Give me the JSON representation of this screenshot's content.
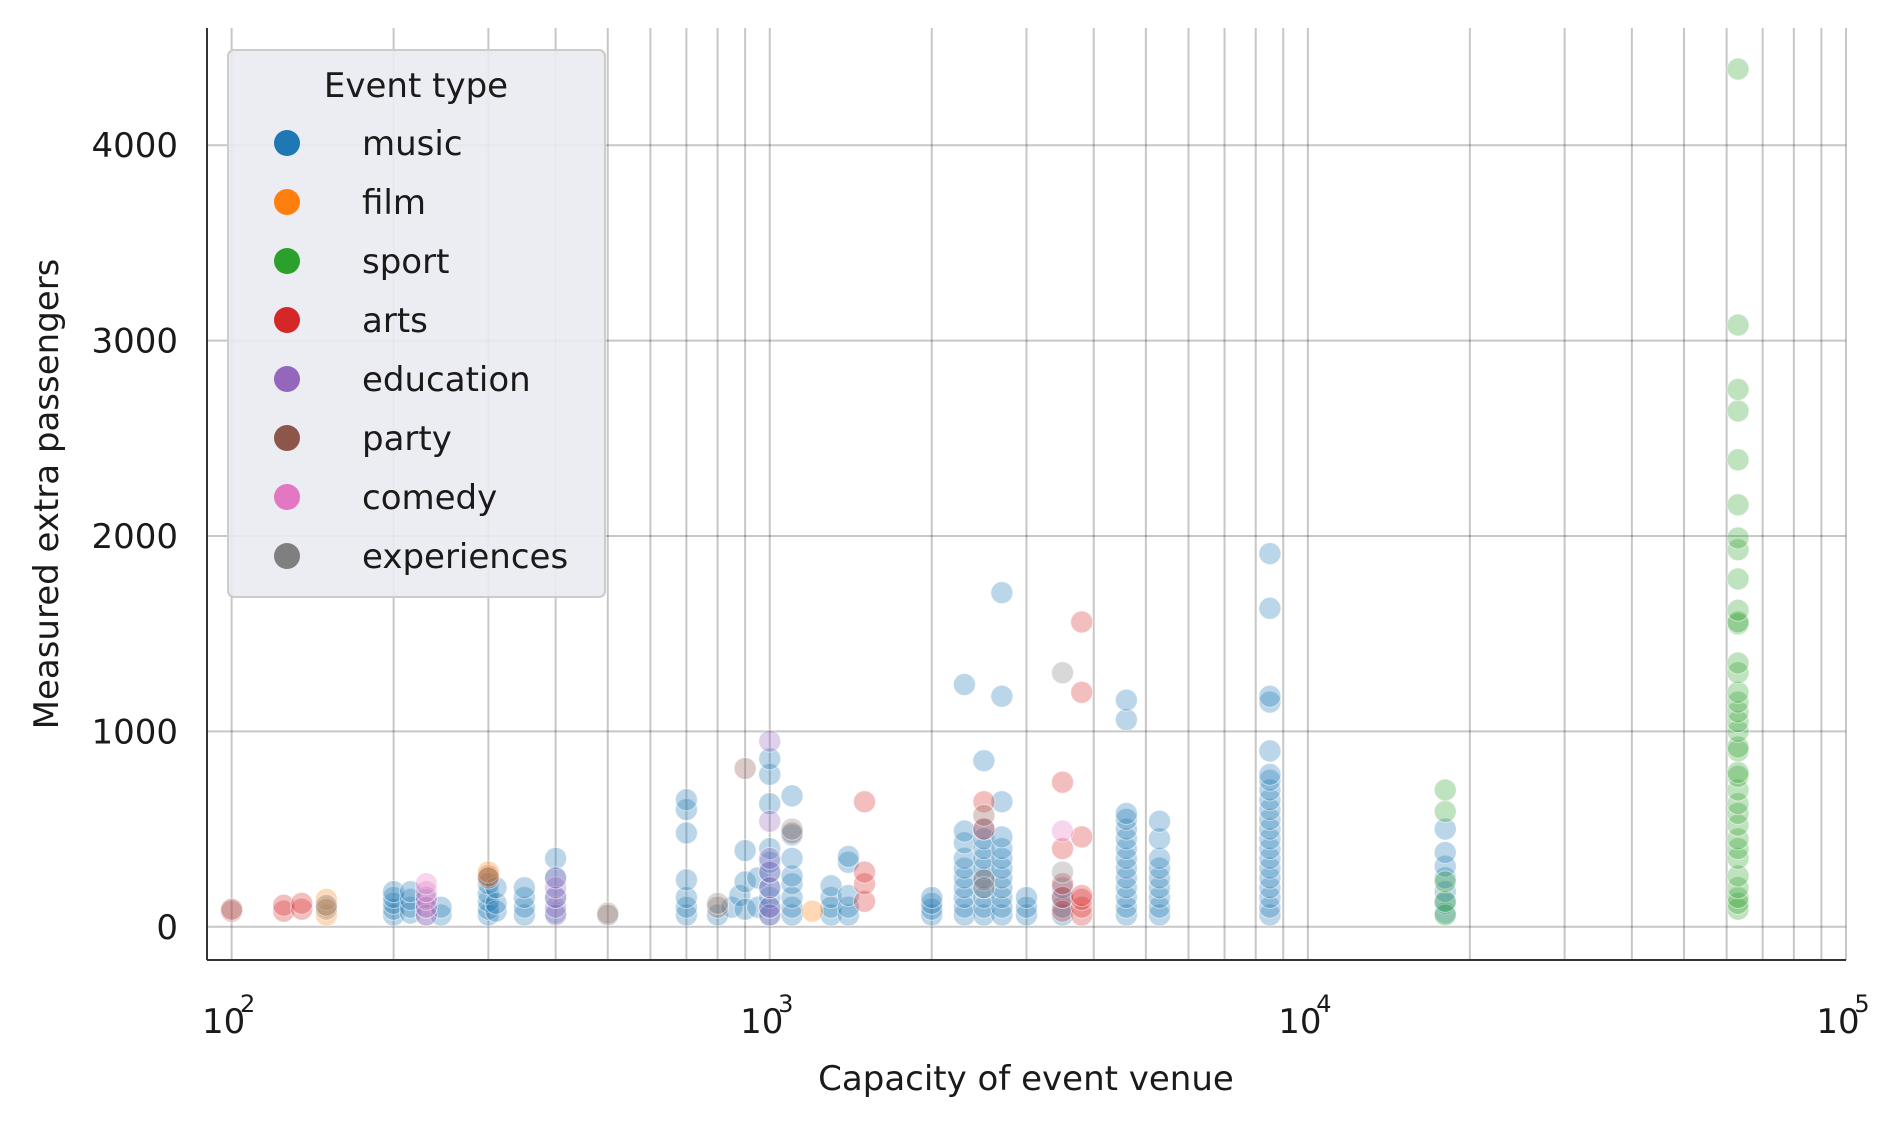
{
  "chart_data": {
    "type": "scatter",
    "xlabel": "Capacity of event venue",
    "ylabel": "Measured extra passengers",
    "xscale": "log",
    "xlim": [
      90,
      100000
    ],
    "ylim": [
      -170,
      4600
    ],
    "xticks": [
      {
        "value": 100,
        "base": "10",
        "exp": "2"
      },
      {
        "value": 1000,
        "base": "10",
        "exp": "3"
      },
      {
        "value": 10000,
        "base": "10",
        "exp": "4"
      },
      {
        "value": 100000,
        "base": "10",
        "exp": "5"
      }
    ],
    "yticks": [
      {
        "value": 0,
        "label": "0"
      },
      {
        "value": 1000,
        "label": "1000"
      },
      {
        "value": 2000,
        "label": "2000"
      },
      {
        "value": 3000,
        "label": "3000"
      },
      {
        "value": 4000,
        "label": "4000"
      }
    ],
    "grid": true,
    "legend": {
      "title": "Event type",
      "position": "top-left"
    },
    "series": [
      {
        "name": "music",
        "color": "#1f77b4",
        "points": [
          [
            200,
            60
          ],
          [
            200,
            90
          ],
          [
            200,
            120
          ],
          [
            200,
            150
          ],
          [
            200,
            180
          ],
          [
            215,
            70
          ],
          [
            215,
            100
          ],
          [
            215,
            140
          ],
          [
            215,
            180
          ],
          [
            230,
            60
          ],
          [
            230,
            100
          ],
          [
            230,
            150
          ],
          [
            245,
            60
          ],
          [
            245,
            100
          ],
          [
            300,
            60
          ],
          [
            300,
            90
          ],
          [
            300,
            130
          ],
          [
            300,
            170
          ],
          [
            300,
            220
          ],
          [
            300,
            260
          ],
          [
            310,
            80
          ],
          [
            310,
            120
          ],
          [
            310,
            200
          ],
          [
            350,
            60
          ],
          [
            350,
            100
          ],
          [
            350,
            150
          ],
          [
            350,
            200
          ],
          [
            400,
            70
          ],
          [
            400,
            150
          ],
          [
            400,
            250
          ],
          [
            400,
            350
          ],
          [
            700,
            60
          ],
          [
            700,
            100
          ],
          [
            700,
            150
          ],
          [
            700,
            240
          ],
          [
            700,
            480
          ],
          [
            700,
            600
          ],
          [
            700,
            650
          ],
          [
            800,
            60
          ],
          [
            850,
            100
          ],
          [
            880,
            160
          ],
          [
            900,
            90
          ],
          [
            900,
            230
          ],
          [
            900,
            390
          ],
          [
            950,
            100
          ],
          [
            950,
            250
          ],
          [
            1000,
            60
          ],
          [
            1000,
            100
          ],
          [
            1000,
            150
          ],
          [
            1000,
            200
          ],
          [
            1000,
            280
          ],
          [
            1000,
            330
          ],
          [
            1000,
            400
          ],
          [
            1000,
            630
          ],
          [
            1000,
            780
          ],
          [
            1000,
            860
          ],
          [
            1100,
            60
          ],
          [
            1100,
            100
          ],
          [
            1100,
            150
          ],
          [
            1100,
            220
          ],
          [
            1100,
            260
          ],
          [
            1100,
            350
          ],
          [
            1100,
            470
          ],
          [
            1100,
            670
          ],
          [
            1300,
            60
          ],
          [
            1300,
            100
          ],
          [
            1300,
            150
          ],
          [
            1300,
            210
          ],
          [
            1400,
            60
          ],
          [
            1400,
            100
          ],
          [
            1400,
            160
          ],
          [
            1400,
            330
          ],
          [
            1400,
            360
          ],
          [
            2000,
            60
          ],
          [
            2000,
            90
          ],
          [
            2000,
            120
          ],
          [
            2000,
            150
          ],
          [
            2300,
            60
          ],
          [
            2300,
            100
          ],
          [
            2300,
            150
          ],
          [
            2300,
            200
          ],
          [
            2300,
            250
          ],
          [
            2300,
            300
          ],
          [
            2300,
            350
          ],
          [
            2300,
            430
          ],
          [
            2300,
            490
          ],
          [
            2300,
            1240
          ],
          [
            2500,
            60
          ],
          [
            2500,
            100
          ],
          [
            2500,
            150
          ],
          [
            2500,
            200
          ],
          [
            2500,
            250
          ],
          [
            2500,
            300
          ],
          [
            2500,
            350
          ],
          [
            2500,
            400
          ],
          [
            2500,
            450
          ],
          [
            2500,
            500
          ],
          [
            2500,
            850
          ],
          [
            2700,
            60
          ],
          [
            2700,
            100
          ],
          [
            2700,
            150
          ],
          [
            2700,
            200
          ],
          [
            2700,
            250
          ],
          [
            2700,
            300
          ],
          [
            2700,
            350
          ],
          [
            2700,
            400
          ],
          [
            2700,
            460
          ],
          [
            2700,
            640
          ],
          [
            2700,
            1180
          ],
          [
            2700,
            1710
          ],
          [
            3000,
            60
          ],
          [
            3000,
            100
          ],
          [
            3000,
            150
          ],
          [
            3500,
            60
          ],
          [
            3500,
            100
          ],
          [
            3500,
            150
          ],
          [
            3500,
            200
          ],
          [
            4600,
            60
          ],
          [
            4600,
            100
          ],
          [
            4600,
            150
          ],
          [
            4600,
            200
          ],
          [
            4600,
            250
          ],
          [
            4600,
            300
          ],
          [
            4600,
            350
          ],
          [
            4600,
            400
          ],
          [
            4600,
            450
          ],
          [
            4600,
            500
          ],
          [
            4600,
            550
          ],
          [
            4600,
            580
          ],
          [
            4600,
            1060
          ],
          [
            4600,
            1160
          ],
          [
            5300,
            60
          ],
          [
            5300,
            100
          ],
          [
            5300,
            150
          ],
          [
            5300,
            200
          ],
          [
            5300,
            250
          ],
          [
            5300,
            300
          ],
          [
            5300,
            350
          ],
          [
            5300,
            450
          ],
          [
            5300,
            540
          ],
          [
            8500,
            60
          ],
          [
            8500,
            100
          ],
          [
            8500,
            150
          ],
          [
            8500,
            200
          ],
          [
            8500,
            250
          ],
          [
            8500,
            300
          ],
          [
            8500,
            350
          ],
          [
            8500,
            400
          ],
          [
            8500,
            450
          ],
          [
            8500,
            500
          ],
          [
            8500,
            550
          ],
          [
            8500,
            600
          ],
          [
            8500,
            650
          ],
          [
            8500,
            700
          ],
          [
            8500,
            750
          ],
          [
            8500,
            780
          ],
          [
            8500,
            900
          ],
          [
            8500,
            1150
          ],
          [
            8500,
            1180
          ],
          [
            8500,
            1630
          ],
          [
            8500,
            1910
          ],
          [
            18000,
            70
          ],
          [
            18000,
            120
          ],
          [
            18000,
            180
          ],
          [
            18000,
            250
          ],
          [
            18000,
            310
          ],
          [
            18000,
            380
          ],
          [
            18000,
            500
          ]
        ]
      },
      {
        "name": "film",
        "color": "#ff7f0e",
        "points": [
          [
            150,
            60
          ],
          [
            150,
            100
          ],
          [
            150,
            140
          ],
          [
            300,
            260
          ],
          [
            300,
            280
          ],
          [
            1200,
            80
          ]
        ]
      },
      {
        "name": "sport",
        "color": "#2ca02c",
        "points": [
          [
            18000,
            60
          ],
          [
            18000,
            130
          ],
          [
            18000,
            230
          ],
          [
            18000,
            590
          ],
          [
            18000,
            700
          ],
          [
            63000,
            90
          ],
          [
            63000,
            120
          ],
          [
            63000,
            150
          ],
          [
            63000,
            200
          ],
          [
            63000,
            260
          ],
          [
            63000,
            350
          ],
          [
            63000,
            400
          ],
          [
            63000,
            450
          ],
          [
            63000,
            520
          ],
          [
            63000,
            580
          ],
          [
            63000,
            630
          ],
          [
            63000,
            700
          ],
          [
            63000,
            770
          ],
          [
            63000,
            790
          ],
          [
            63000,
            900
          ],
          [
            63000,
            920
          ],
          [
            63000,
            1000
          ],
          [
            63000,
            1050
          ],
          [
            63000,
            1100
          ],
          [
            63000,
            1150
          ],
          [
            63000,
            1200
          ],
          [
            63000,
            1300
          ],
          [
            63000,
            1350
          ],
          [
            63000,
            1550
          ],
          [
            63000,
            1560
          ],
          [
            63000,
            1620
          ],
          [
            63000,
            1780
          ],
          [
            63000,
            1930
          ],
          [
            63000,
            1990
          ],
          [
            63000,
            2160
          ],
          [
            63000,
            2390
          ],
          [
            63000,
            2640
          ],
          [
            63000,
            2750
          ],
          [
            63000,
            3080
          ],
          [
            63000,
            4390
          ]
        ]
      },
      {
        "name": "arts",
        "color": "#d62728",
        "points": [
          [
            100,
            80
          ],
          [
            125,
            80
          ],
          [
            125,
            110
          ],
          [
            135,
            90
          ],
          [
            135,
            120
          ],
          [
            1500,
            130
          ],
          [
            1500,
            220
          ],
          [
            1500,
            280
          ],
          [
            1500,
            640
          ],
          [
            2500,
            500
          ],
          [
            2500,
            640
          ],
          [
            3500,
            80
          ],
          [
            3500,
            150
          ],
          [
            3500,
            220
          ],
          [
            3500,
            400
          ],
          [
            3500,
            740
          ],
          [
            3800,
            60
          ],
          [
            3800,
            100
          ],
          [
            3800,
            140
          ],
          [
            3800,
            160
          ],
          [
            3800,
            460
          ],
          [
            3800,
            1200
          ],
          [
            3800,
            1560
          ]
        ]
      },
      {
        "name": "education",
        "color": "#9467bd",
        "points": [
          [
            400,
            60
          ],
          [
            400,
            100
          ],
          [
            400,
            150
          ],
          [
            400,
            200
          ],
          [
            400,
            250
          ],
          [
            1000,
            60
          ],
          [
            1000,
            100
          ],
          [
            1000,
            200
          ],
          [
            1000,
            280
          ],
          [
            1000,
            350
          ],
          [
            1000,
            540
          ],
          [
            1000,
            950
          ]
        ]
      },
      {
        "name": "party",
        "color": "#8c564b",
        "points": [
          [
            100,
            90
          ],
          [
            300,
            250
          ],
          [
            500,
            70
          ],
          [
            800,
            100
          ],
          [
            900,
            810
          ],
          [
            1100,
            480
          ],
          [
            2500,
            570
          ],
          [
            2500,
            240
          ]
        ]
      },
      {
        "name": "comedy",
        "color": "#e377c2",
        "points": [
          [
            230,
            60
          ],
          [
            230,
            100
          ],
          [
            230,
            140
          ],
          [
            230,
            180
          ],
          [
            230,
            220
          ],
          [
            3500,
            490
          ]
        ]
      },
      {
        "name": "experiences",
        "color": "#7f7f7f",
        "points": [
          [
            150,
            90
          ],
          [
            150,
            110
          ],
          [
            500,
            60
          ],
          [
            800,
            120
          ],
          [
            1100,
            500
          ],
          [
            2500,
            200
          ],
          [
            3500,
            280
          ],
          [
            3500,
            1300
          ]
        ]
      }
    ]
  }
}
